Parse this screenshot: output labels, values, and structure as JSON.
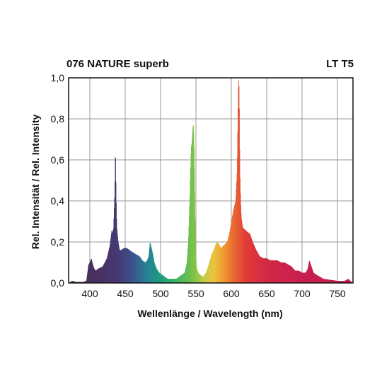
{
  "chart_data": {
    "type": "area",
    "title": "076 NATURE superb",
    "subtitle": "LT T5",
    "xlabel": "Wellenlänge / Wavelength (nm)",
    "ylabel": "Rel. Intensität / Rel. Intensity",
    "xlim": [
      370,
      772
    ],
    "ylim": [
      0,
      1.0
    ],
    "xticks": [
      400,
      450,
      500,
      550,
      600,
      650,
      700,
      750
    ],
    "xtick_labels": [
      "400",
      "450",
      "500",
      "550",
      "600",
      "650",
      "700",
      "750"
    ],
    "yticks": [
      0,
      0.2,
      0.4,
      0.6,
      0.8,
      1.0
    ],
    "ytick_labels": [
      "0,0",
      "0,2",
      "0,4",
      "0,6",
      "0,8",
      "1,0"
    ],
    "grid": true,
    "fill": "wavelength-spectrum-colors",
    "series": [
      {
        "x": [
          370,
          375,
          380,
          390,
          395,
          398,
          400,
          402,
          404,
          406,
          408,
          412,
          418,
          424,
          428,
          431,
          433,
          435,
          436,
          437,
          438,
          440,
          442,
          444,
          448,
          452,
          456,
          460,
          465,
          470,
          474,
          478,
          481,
          483,
          485,
          487,
          489,
          491,
          494,
          498,
          502,
          506,
          510,
          514,
          518,
          522,
          526,
          530,
          534,
          537,
          539,
          541,
          543,
          544,
          545,
          546,
          547,
          548,
          549,
          550,
          551,
          553,
          556,
          560,
          564,
          568,
          572,
          576,
          578,
          580,
          582,
          585,
          588,
          591,
          594,
          597,
          600,
          603,
          606,
          608,
          609,
          610,
          611,
          612,
          613,
          614,
          616,
          619,
          622,
          626,
          630,
          635,
          640,
          645,
          650,
          655,
          660,
          665,
          670,
          675,
          680,
          685,
          690,
          695,
          700,
          705,
          708,
          710,
          712,
          714,
          716,
          720,
          725,
          730,
          740,
          750,
          760,
          765,
          768,
          772
        ],
        "y": [
          0.0,
          0.01,
          0.005,
          0.005,
          0.01,
          0.09,
          0.1,
          0.12,
          0.09,
          0.07,
          0.06,
          0.07,
          0.08,
          0.12,
          0.18,
          0.26,
          0.24,
          0.44,
          0.67,
          0.43,
          0.27,
          0.2,
          0.16,
          0.16,
          0.17,
          0.17,
          0.16,
          0.15,
          0.14,
          0.13,
          0.11,
          0.1,
          0.11,
          0.13,
          0.2,
          0.17,
          0.14,
          0.1,
          0.07,
          0.05,
          0.04,
          0.03,
          0.02,
          0.02,
          0.02,
          0.02,
          0.03,
          0.04,
          0.05,
          0.1,
          0.2,
          0.4,
          0.66,
          0.68,
          0.74,
          0.78,
          0.72,
          0.5,
          0.25,
          0.12,
          0.07,
          0.05,
          0.04,
          0.03,
          0.05,
          0.09,
          0.14,
          0.17,
          0.19,
          0.2,
          0.19,
          0.17,
          0.18,
          0.19,
          0.2,
          0.24,
          0.3,
          0.36,
          0.4,
          0.55,
          0.8,
          1.0,
          0.95,
          0.55,
          0.4,
          0.32,
          0.27,
          0.26,
          0.25,
          0.24,
          0.2,
          0.16,
          0.13,
          0.12,
          0.12,
          0.11,
          0.11,
          0.11,
          0.1,
          0.1,
          0.09,
          0.08,
          0.06,
          0.06,
          0.05,
          0.05,
          0.07,
          0.11,
          0.09,
          0.07,
          0.05,
          0.04,
          0.03,
          0.02,
          0.015,
          0.01,
          0.01,
          0.02,
          0.01,
          0.0
        ]
      }
    ]
  }
}
